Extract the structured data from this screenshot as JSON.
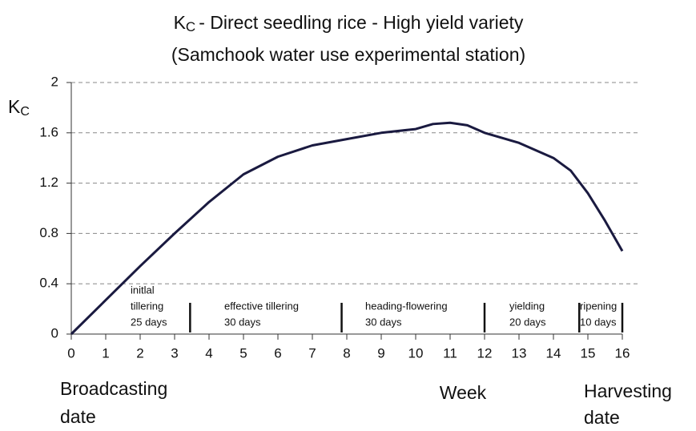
{
  "chart_data": {
    "type": "line",
    "title_symbol": {
      "base": "K",
      "sub": "C"
    },
    "title": "- Direct seedling rice  - High yield variety",
    "subtitle": "(Samchook water use experimental station)",
    "ylabel": {
      "base": "K",
      "sub": "C"
    },
    "xlabel": "Week",
    "start_label": [
      "Broadcasting",
      "date"
    ],
    "end_label": [
      "Harvesting",
      "date"
    ],
    "color": "#1a1a40",
    "grid": true,
    "xlim": [
      0,
      16
    ],
    "xticks": [
      0,
      1,
      2,
      3,
      4,
      5,
      6,
      7,
      8,
      9,
      10,
      11,
      12,
      13,
      14,
      15,
      16
    ],
    "ylim": [
      0,
      2
    ],
    "yticks": [
      0,
      0.4,
      0.8,
      1.2,
      1.6,
      2
    ],
    "series": [
      {
        "name": "Kc",
        "color": "#1a1a40",
        "x": [
          0,
          1,
          2,
          3,
          4,
          5,
          6,
          7,
          8,
          9,
          10,
          10.5,
          11,
          11.5,
          12,
          13,
          14,
          14.5,
          15,
          15.5,
          16
        ],
        "values": [
          0,
          0.27,
          0.54,
          0.8,
          1.05,
          1.27,
          1.41,
          1.5,
          1.55,
          1.6,
          1.63,
          1.67,
          1.68,
          1.66,
          1.6,
          1.52,
          1.4,
          1.3,
          1.12,
          0.9,
          0.66
        ]
      }
    ],
    "dividers": [
      3.45,
      7.85,
      12,
      14.75,
      16
    ],
    "stages": [
      [
        "initlal",
        "tillering",
        "25 days"
      ],
      [
        "effective tillering",
        "30 days"
      ],
      [
        "heading-flowering",
        "30 days"
      ],
      [
        "yielding",
        "20 days"
      ],
      [
        "ripening",
        "10 days"
      ]
    ]
  }
}
